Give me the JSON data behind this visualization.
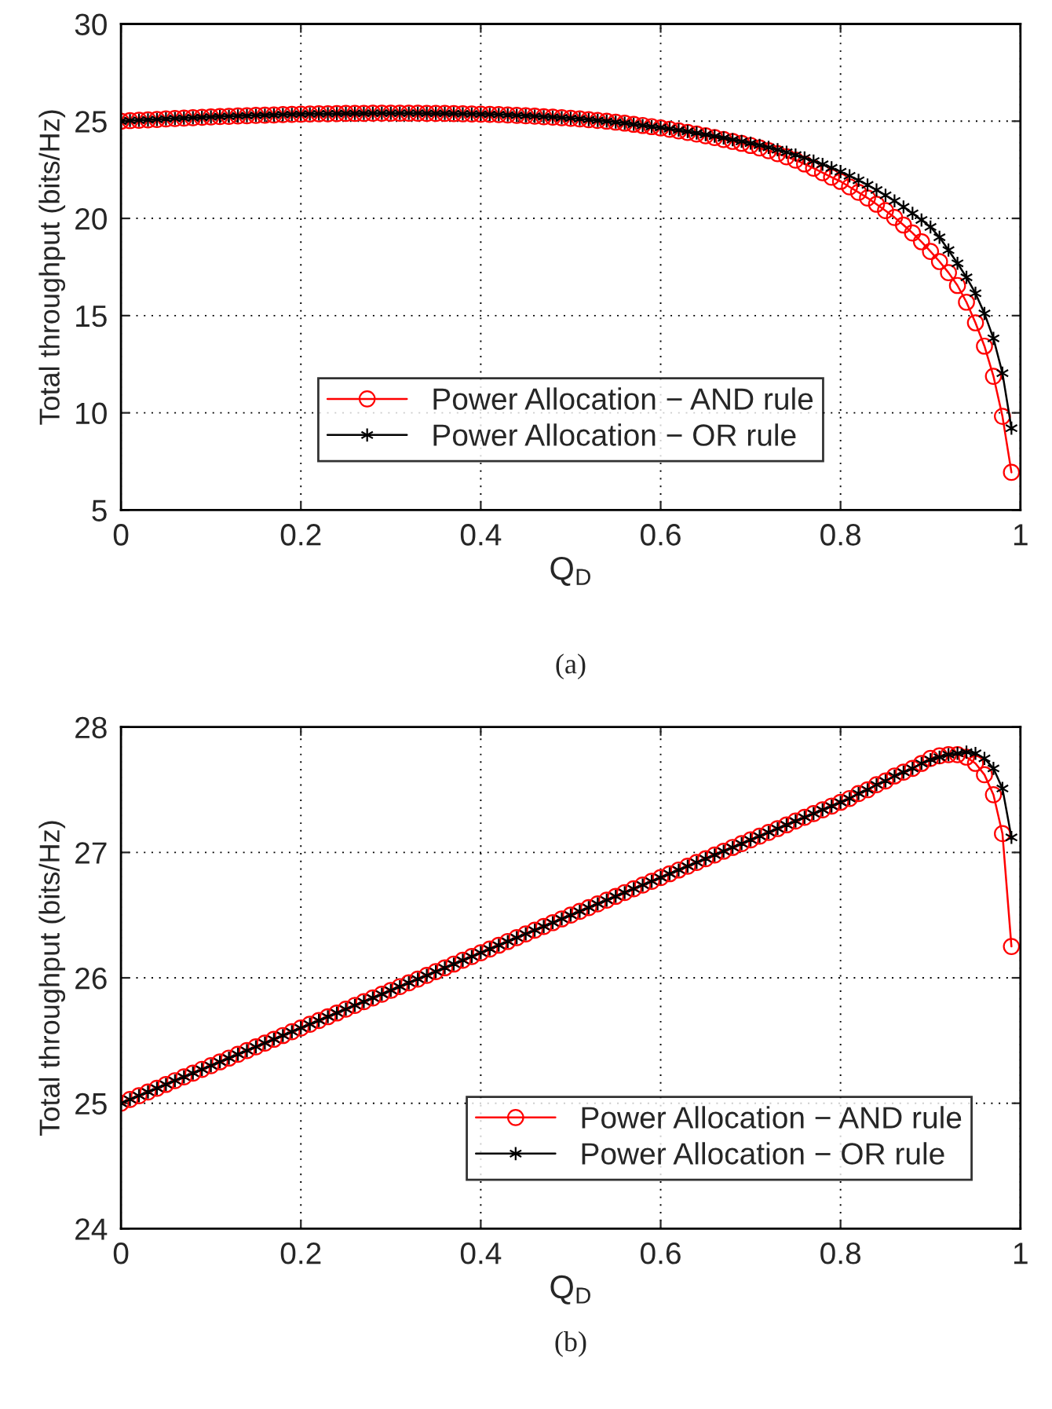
{
  "chart_data": [
    {
      "type": "line",
      "xlabel": "Q$_{D}$",
      "ylabel": "Total throughput (bits/Hz)",
      "annotations": [
        "(a)"
      ],
      "x": [
        0.0,
        0.01,
        0.02,
        0.03,
        0.04,
        0.05,
        0.06,
        0.07,
        0.08,
        0.09,
        0.1,
        0.11,
        0.12,
        0.13,
        0.14,
        0.15,
        0.16,
        0.17,
        0.18,
        0.19,
        0.2,
        0.21,
        0.22,
        0.23,
        0.24,
        0.25,
        0.26,
        0.27,
        0.28,
        0.29,
        0.3,
        0.31,
        0.32,
        0.33,
        0.34,
        0.35,
        0.36,
        0.37,
        0.38,
        0.39,
        0.4,
        0.41,
        0.42,
        0.43,
        0.44,
        0.45,
        0.46,
        0.47,
        0.48,
        0.49,
        0.5,
        0.51,
        0.52,
        0.53,
        0.54,
        0.55,
        0.56,
        0.57,
        0.58,
        0.59,
        0.6,
        0.61,
        0.62,
        0.63,
        0.64,
        0.65,
        0.66,
        0.67,
        0.68,
        0.69,
        0.7,
        0.71,
        0.72,
        0.73,
        0.74,
        0.75,
        0.76,
        0.77,
        0.78,
        0.79,
        0.8,
        0.81,
        0.82,
        0.83,
        0.84,
        0.85,
        0.86,
        0.87,
        0.88,
        0.89,
        0.9,
        0.91,
        0.92,
        0.93,
        0.94,
        0.95,
        0.96,
        0.97,
        0.98,
        0.99
      ],
      "series": [
        {
          "name": "Power Allocation − AND rule",
          "color": "#ff0000",
          "marker": "circle",
          "values": [
            25.0,
            25.03,
            25.05,
            25.07,
            25.09,
            25.12,
            25.14,
            25.16,
            25.18,
            25.2,
            25.22,
            25.24,
            25.25,
            25.27,
            25.28,
            25.3,
            25.31,
            25.32,
            25.34,
            25.35,
            25.36,
            25.37,
            25.38,
            25.38,
            25.39,
            25.4,
            25.4,
            25.4,
            25.41,
            25.41,
            25.41,
            25.41,
            25.41,
            25.41,
            25.4,
            25.4,
            25.4,
            25.39,
            25.38,
            25.37,
            25.36,
            25.35,
            25.34,
            25.32,
            25.3,
            25.28,
            25.26,
            25.23,
            25.21,
            25.18,
            25.15,
            25.12,
            25.08,
            25.04,
            25.0,
            24.95,
            24.9,
            24.84,
            24.78,
            24.72,
            24.65,
            24.58,
            24.5,
            24.42,
            24.34,
            24.25,
            24.16,
            24.06,
            23.96,
            23.86,
            23.75,
            23.62,
            23.48,
            23.33,
            23.17,
            23.0,
            22.8,
            22.58,
            22.35,
            22.12,
            21.9,
            21.62,
            21.34,
            21.05,
            20.73,
            20.4,
            20.05,
            19.66,
            19.25,
            18.8,
            18.3,
            17.78,
            17.21,
            16.55,
            15.69,
            14.63,
            13.43,
            11.88,
            9.82,
            6.94
          ]
        },
        {
          "name": "Power Allocation − OR rule",
          "color": "#000000",
          "marker": "cross",
          "values": [
            25.0,
            25.03,
            25.05,
            25.07,
            25.09,
            25.12,
            25.14,
            25.16,
            25.18,
            25.2,
            25.22,
            25.24,
            25.25,
            25.27,
            25.28,
            25.3,
            25.31,
            25.32,
            25.34,
            25.35,
            25.36,
            25.37,
            25.38,
            25.38,
            25.39,
            25.4,
            25.4,
            25.4,
            25.41,
            25.41,
            25.41,
            25.41,
            25.41,
            25.41,
            25.4,
            25.4,
            25.4,
            25.39,
            25.38,
            25.37,
            25.36,
            25.35,
            25.34,
            25.32,
            25.3,
            25.28,
            25.26,
            25.23,
            25.21,
            25.18,
            25.15,
            25.12,
            25.08,
            25.04,
            25.0,
            24.95,
            24.9,
            24.84,
            24.78,
            24.72,
            24.67,
            24.61,
            24.54,
            24.47,
            24.39,
            24.31,
            24.23,
            24.14,
            24.05,
            23.96,
            23.87,
            23.76,
            23.65,
            23.53,
            23.4,
            23.26,
            23.11,
            22.95,
            22.78,
            22.6,
            22.4,
            22.19,
            21.96,
            21.72,
            21.46,
            21.19,
            20.9,
            20.59,
            20.26,
            19.92,
            19.56,
            19.03,
            18.37,
            17.69,
            16.97,
            16.15,
            15.11,
            13.83,
            12.04,
            9.21
          ]
        }
      ],
      "xlim": [
        0,
        1
      ],
      "xticks": [
        0,
        0.2,
        0.4,
        0.6,
        0.8,
        1
      ],
      "ylim": [
        5,
        30
      ],
      "yticks": [
        5,
        10,
        15,
        20,
        25,
        30
      ],
      "grid": true,
      "legend": "bottom",
      "line_style": "solid"
    },
    {
      "type": "line",
      "xlabel": "Q$_{D}$",
      "ylabel": "Total throughput (bits/Hz)",
      "annotations": [
        "(b)"
      ],
      "x": [
        0.0,
        0.01,
        0.02,
        0.03,
        0.04,
        0.05,
        0.06,
        0.07,
        0.08,
        0.09,
        0.1,
        0.11,
        0.12,
        0.13,
        0.14,
        0.15,
        0.16,
        0.17,
        0.18,
        0.19,
        0.2,
        0.21,
        0.22,
        0.23,
        0.24,
        0.25,
        0.26,
        0.27,
        0.28,
        0.29,
        0.3,
        0.31,
        0.32,
        0.33,
        0.34,
        0.35,
        0.36,
        0.37,
        0.38,
        0.39,
        0.4,
        0.41,
        0.42,
        0.43,
        0.44,
        0.45,
        0.46,
        0.47,
        0.48,
        0.49,
        0.5,
        0.51,
        0.52,
        0.53,
        0.54,
        0.55,
        0.56,
        0.57,
        0.58,
        0.59,
        0.6,
        0.61,
        0.62,
        0.63,
        0.64,
        0.65,
        0.66,
        0.67,
        0.68,
        0.69,
        0.7,
        0.71,
        0.72,
        0.73,
        0.74,
        0.75,
        0.76,
        0.77,
        0.78,
        0.79,
        0.8,
        0.81,
        0.82,
        0.83,
        0.84,
        0.85,
        0.86,
        0.87,
        0.88,
        0.89,
        0.9,
        0.91,
        0.92,
        0.93,
        0.94,
        0.95,
        0.96,
        0.97,
        0.98,
        0.99
      ],
      "series": [
        {
          "name": "Power Allocation − AND rule",
          "color": "#ff0000",
          "marker": "circle",
          "values": [
            25.0,
            25.03,
            25.06,
            25.09,
            25.12,
            25.15,
            25.18,
            25.21,
            25.24,
            25.27,
            25.3,
            25.33,
            25.36,
            25.39,
            25.42,
            25.45,
            25.48,
            25.51,
            25.54,
            25.57,
            25.6,
            25.63,
            25.66,
            25.69,
            25.72,
            25.75,
            25.78,
            25.81,
            25.84,
            25.87,
            25.9,
            25.93,
            25.96,
            25.99,
            26.02,
            26.05,
            26.08,
            26.11,
            26.14,
            26.17,
            26.2,
            26.23,
            26.26,
            26.29,
            26.32,
            26.35,
            26.38,
            26.41,
            26.44,
            26.47,
            26.5,
            26.53,
            26.56,
            26.59,
            26.62,
            26.65,
            26.68,
            26.71,
            26.74,
            26.77,
            26.8,
            26.83,
            26.86,
            26.89,
            26.92,
            26.95,
            26.98,
            27.01,
            27.04,
            27.07,
            27.1,
            27.13,
            27.16,
            27.19,
            27.22,
            27.25,
            27.28,
            27.31,
            27.34,
            27.37,
            27.4,
            27.43,
            27.47,
            27.5,
            27.54,
            27.57,
            27.61,
            27.64,
            27.67,
            27.71,
            27.75,
            27.77,
            27.78,
            27.78,
            27.76,
            27.71,
            27.62,
            27.46,
            27.15,
            26.25
          ]
        },
        {
          "name": "Power Allocation − OR rule",
          "color": "#000000",
          "marker": "cross",
          "values": [
            25.0,
            25.03,
            25.06,
            25.09,
            25.12,
            25.15,
            25.18,
            25.21,
            25.24,
            25.27,
            25.3,
            25.33,
            25.36,
            25.39,
            25.42,
            25.45,
            25.48,
            25.51,
            25.54,
            25.57,
            25.6,
            25.63,
            25.66,
            25.69,
            25.72,
            25.75,
            25.78,
            25.81,
            25.84,
            25.87,
            25.9,
            25.93,
            25.96,
            25.99,
            26.02,
            26.05,
            26.08,
            26.11,
            26.14,
            26.17,
            26.2,
            26.23,
            26.26,
            26.29,
            26.32,
            26.35,
            26.38,
            26.41,
            26.44,
            26.47,
            26.5,
            26.53,
            26.56,
            26.59,
            26.62,
            26.65,
            26.68,
            26.71,
            26.74,
            26.77,
            26.8,
            26.83,
            26.86,
            26.89,
            26.92,
            26.95,
            26.98,
            27.01,
            27.04,
            27.07,
            27.1,
            27.13,
            27.16,
            27.19,
            27.22,
            27.25,
            27.28,
            27.31,
            27.34,
            27.37,
            27.4,
            27.43,
            27.47,
            27.5,
            27.54,
            27.57,
            27.61,
            27.64,
            27.67,
            27.71,
            27.74,
            27.76,
            27.78,
            27.79,
            27.8,
            27.79,
            27.75,
            27.67,
            27.51,
            27.12
          ]
        }
      ],
      "xlim": [
        0,
        1
      ],
      "xticks": [
        0,
        0.2,
        0.4,
        0.6,
        0.8,
        1
      ],
      "ylim": [
        24,
        28
      ],
      "yticks": [
        24,
        25,
        26,
        27,
        28
      ],
      "grid": true,
      "legend": "bottom right",
      "line_style": "solid"
    }
  ]
}
